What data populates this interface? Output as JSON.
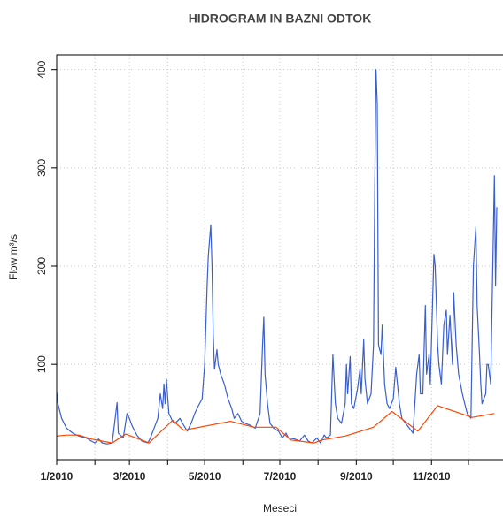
{
  "chart_data": {
    "type": "line",
    "title": "HIDROGRAM IN BAZNI ODTOK",
    "x_label": "Meseci",
    "y_label": "Flow m³/s",
    "xlim": [
      0,
      362
    ],
    "ylim": [
      3,
      415
    ],
    "xticks": [
      {
        "value": 0,
        "label": "1/2010"
      },
      {
        "value": 59,
        "label": "3/2010"
      },
      {
        "value": 120,
        "label": "5/2010"
      },
      {
        "value": 181,
        "label": "7/2010"
      },
      {
        "value": 243,
        "label": "9/2010"
      },
      {
        "value": 304,
        "label": "11/2010"
      }
    ],
    "x_minor_ticks": [
      31,
      90,
      151,
      212,
      273,
      334
    ],
    "yticks": [
      100,
      200,
      300,
      400
    ],
    "grid": true,
    "series": [
      {
        "color": "#3a5fcd",
        "x": [
          0,
          1,
          4,
          8,
          13,
          18,
          24,
          28,
          31,
          34,
          37,
          41,
          45,
          49,
          50,
          54,
          57,
          59,
          61,
          65,
          69,
          74,
          76,
          79,
          82,
          84,
          86,
          87,
          88,
          89,
          91,
          94,
          96,
          100,
          103,
          106,
          109,
          112,
          115,
          118,
          120,
          122,
          123,
          125,
          126,
          127,
          128,
          130,
          131,
          133,
          136,
          139,
          142,
          144,
          147,
          150,
          153,
          157,
          161,
          165,
          167,
          168,
          169,
          171,
          173,
          176,
          180,
          183,
          186,
          188,
          193,
          197,
          201,
          204,
          207,
          211,
          214,
          217,
          219,
          222,
          224,
          226,
          228,
          231,
          234,
          235,
          236,
          238,
          239,
          241,
          244,
          246,
          247,
          249,
          250,
          252,
          255,
          257,
          258,
          259,
          260,
          261,
          263,
          264,
          266,
          268,
          270,
          273,
          275,
          278,
          280,
          283,
          286,
          289,
          292,
          294,
          295,
          297,
          299,
          300,
          302,
          303,
          306,
          307,
          309,
          310,
          312,
          314,
          316,
          317,
          319,
          321,
          322,
          324,
          326,
          329,
          331,
          333,
          336,
          338,
          340,
          341,
          343,
          344,
          345,
          348,
          349,
          350,
          352,
          353,
          355,
          356,
          357
        ],
        "values": [
          72,
          60,
          45,
          35,
          30,
          27,
          25,
          22,
          20,
          24,
          20,
          19,
          20,
          61,
          30,
          25,
          50,
          45,
          38,
          28,
          22,
          20,
          25,
          35,
          45,
          70,
          55,
          80,
          60,
          85,
          50,
          42,
          40,
          45,
          38,
          32,
          40,
          50,
          58,
          65,
          100,
          180,
          210,
          242,
          200,
          130,
          95,
          115,
          100,
          90,
          80,
          65,
          55,
          45,
          50,
          42,
          40,
          38,
          35,
          50,
          120,
          148,
          90,
          60,
          40,
          35,
          32,
          25,
          30,
          25,
          24,
          22,
          28,
          22,
          20,
          25,
          20,
          28,
          25,
          28,
          110,
          60,
          45,
          40,
          60,
          100,
          70,
          108,
          60,
          55,
          75,
          95,
          70,
          125,
          85,
          60,
          70,
          120,
          280,
          400,
          365,
          120,
          110,
          140,
          80,
          60,
          55,
          65,
          97,
          60,
          45,
          40,
          35,
          30,
          90,
          110,
          70,
          70,
          160,
          90,
          110,
          80,
          212,
          200,
          120,
          100,
          80,
          140,
          155,
          110,
          150,
          100,
          173,
          120,
          90,
          70,
          60,
          50,
          45,
          200,
          240,
          160,
          110,
          80,
          60,
          70,
          100,
          100,
          80,
          150,
          292,
          180,
          260
        ]
      },
      {
        "color": "#ff4500",
        "x": [
          0,
          8,
          18,
          28,
          45,
          56,
          75,
          94,
          103,
          141,
          160,
          178,
          190,
          209,
          215,
          234,
          257,
          272,
          293,
          309,
          337,
          355
        ],
        "values": [
          27,
          28,
          28,
          24,
          20,
          29,
          20,
          43,
          33,
          42,
          36,
          36,
          23,
          20,
          23,
          27,
          36,
          52,
          32,
          58,
          46,
          50
        ]
      }
    ]
  }
}
